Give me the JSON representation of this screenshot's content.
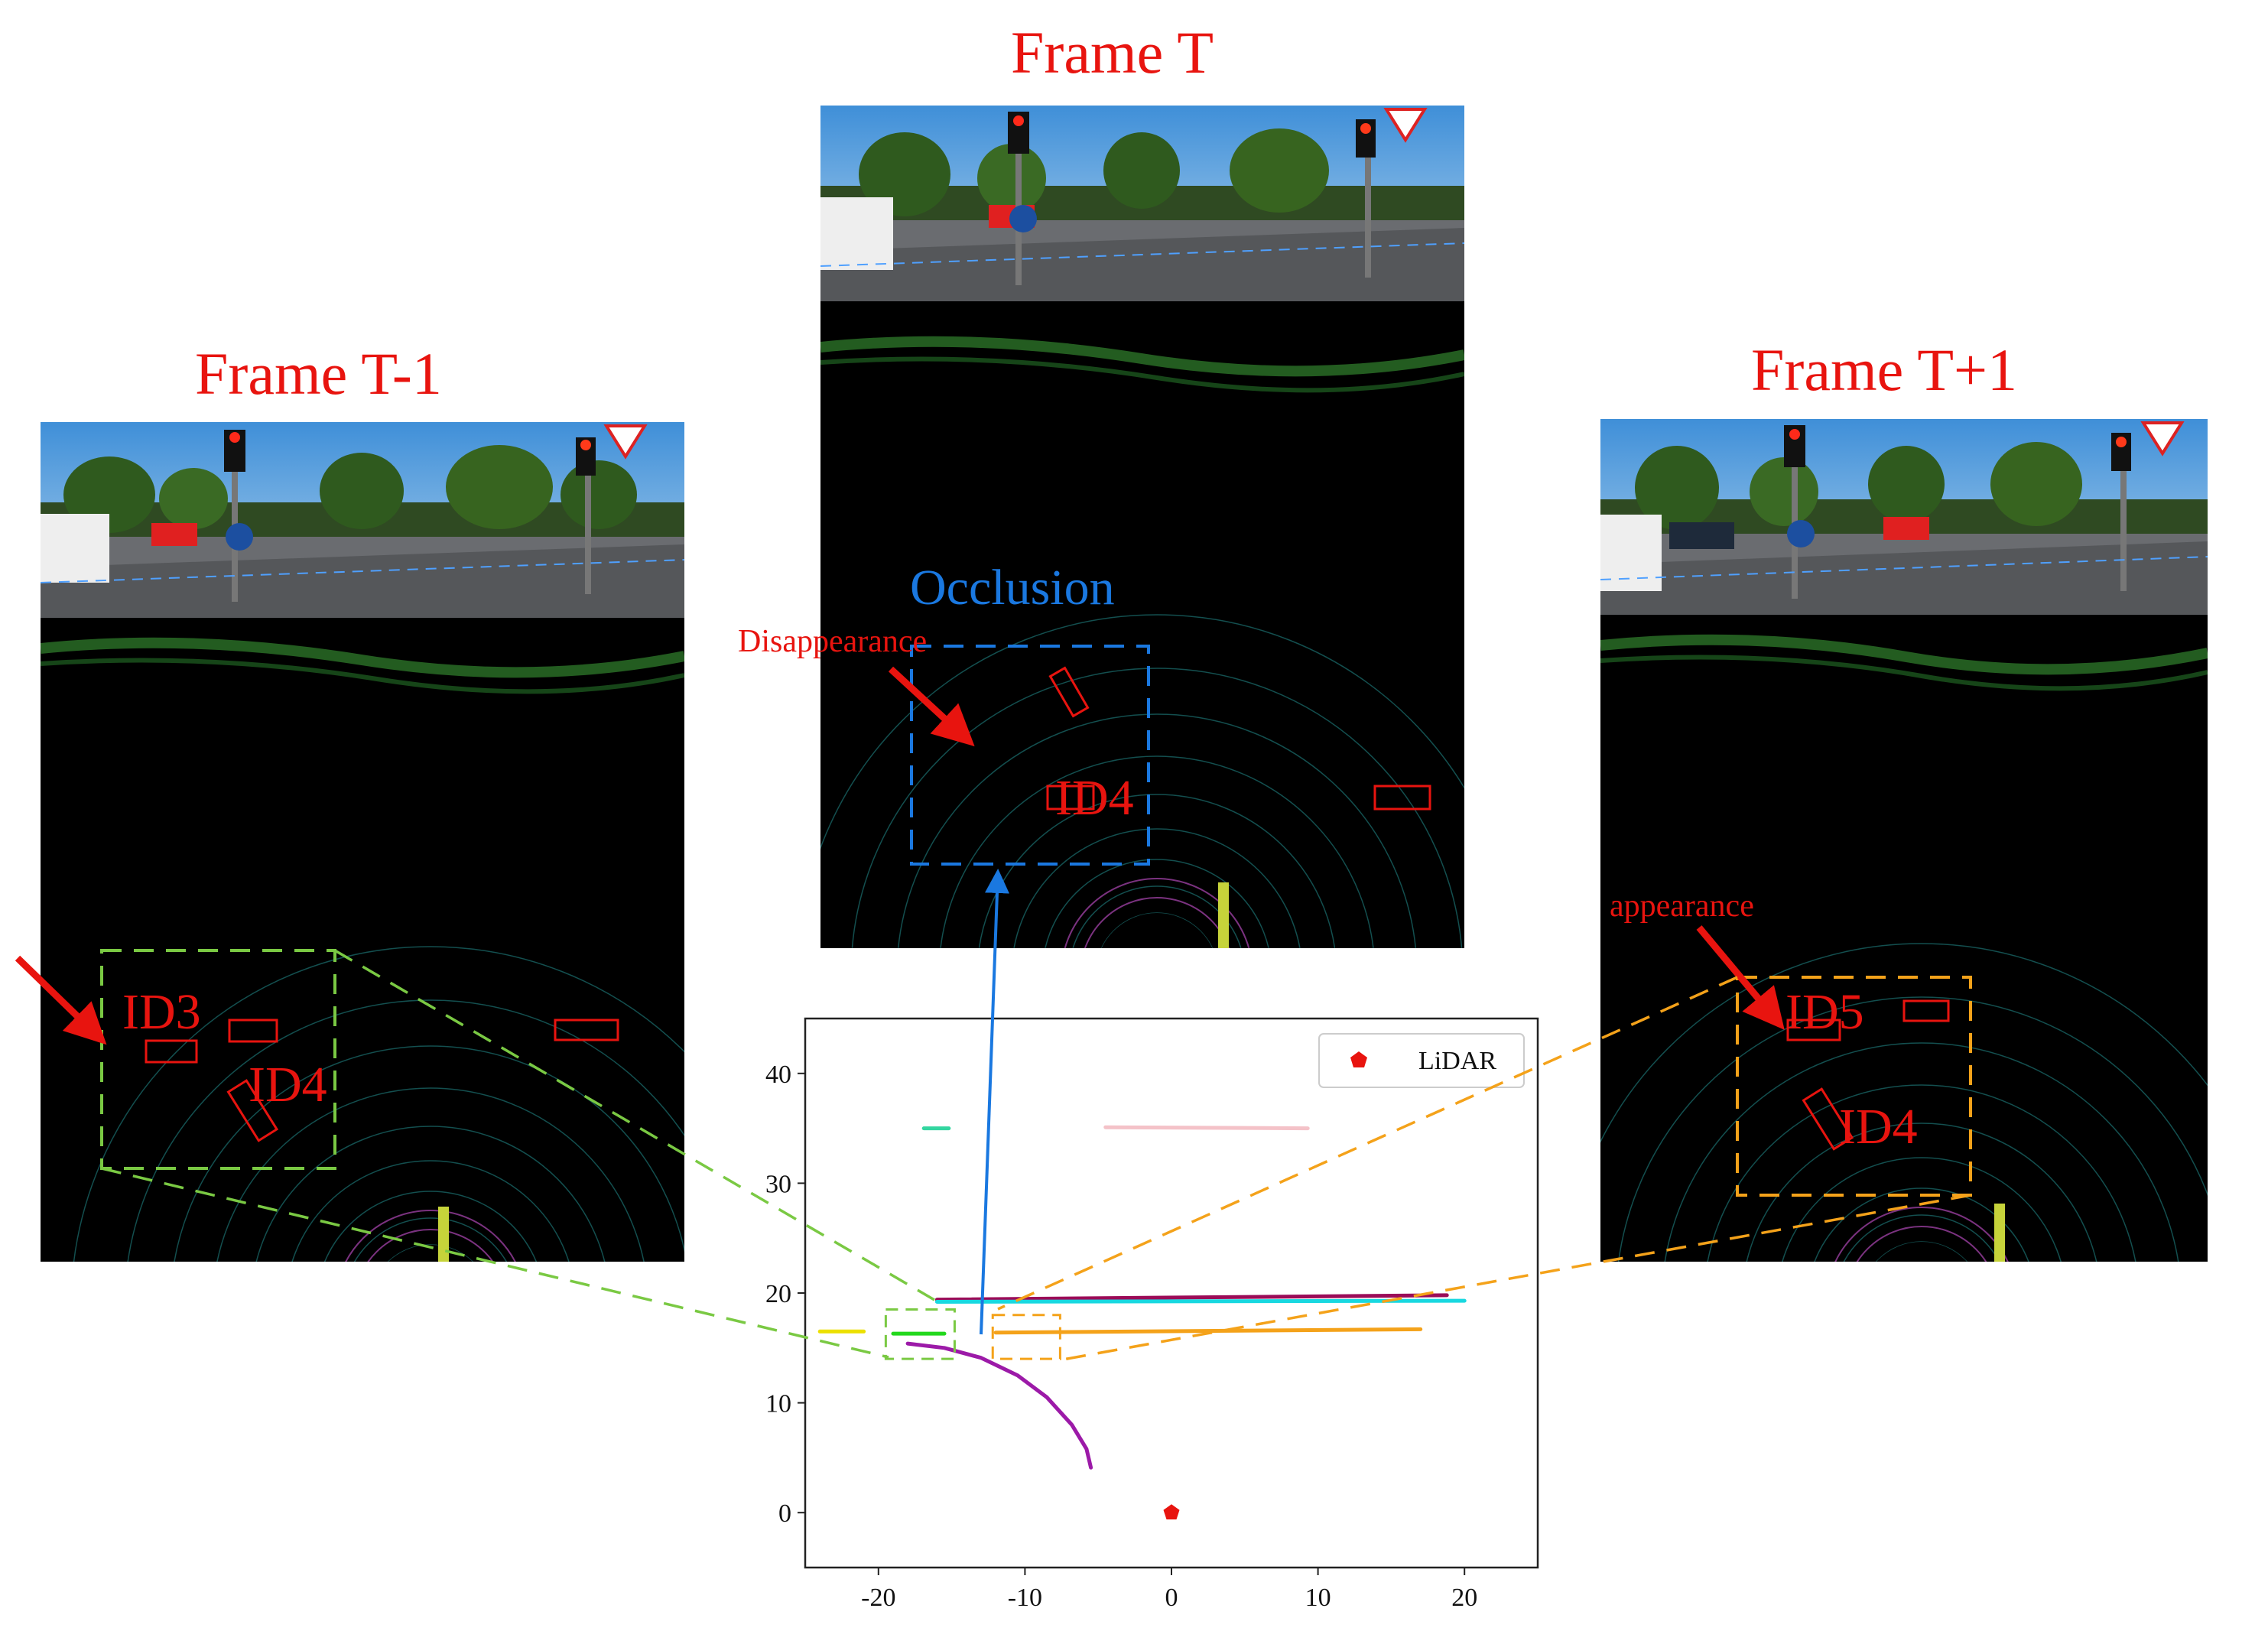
{
  "frames": {
    "prev": {
      "title": "Frame T-1",
      "id_labels": [
        "ID3",
        "ID4"
      ]
    },
    "curr": {
      "title": "Frame T",
      "occlusion": "Occlusion",
      "disappearance": "Disappearance",
      "id_label": "ID4"
    },
    "next": {
      "title": "Frame T+1",
      "appearance": "appearance",
      "id_labels": [
        "ID5",
        "ID4"
      ]
    }
  },
  "chart_data": {
    "type": "line",
    "xlim": [
      -25,
      25
    ],
    "ylim": [
      -5,
      45
    ],
    "xticks": [
      -20,
      -10,
      0,
      10,
      20
    ],
    "yticks": [
      0,
      10,
      20,
      30,
      40
    ],
    "xtick_labels": [
      "-20",
      "-10",
      "0",
      "10",
      "20"
    ],
    "ytick_labels": [
      "0",
      "10",
      "20",
      "30",
      "40"
    ],
    "legend": {
      "label": "LiDAR",
      "position": "top-right"
    },
    "lidar_point": {
      "x": 0,
      "y": 0,
      "color": "#e8140f"
    },
    "series": [
      {
        "color": "#f4c2c8",
        "points": [
          [
            -4.5,
            35.1
          ],
          [
            9.3,
            35.0
          ]
        ]
      },
      {
        "color": "#33d6a0",
        "points": [
          [
            -16.9,
            35.0
          ],
          [
            -15.2,
            35.0
          ]
        ]
      },
      {
        "color": "#9b0c58",
        "points": [
          [
            -16.0,
            19.4
          ],
          [
            18.8,
            19.8
          ]
        ]
      },
      {
        "color": "#18d8e0",
        "points": [
          [
            -16.0,
            19.2
          ],
          [
            20.0,
            19.3
          ]
        ]
      },
      {
        "color": "#f4a21a",
        "points": [
          [
            -12.0,
            16.4
          ],
          [
            17.0,
            16.7
          ]
        ]
      },
      {
        "color": "#ece000",
        "points": [
          [
            -24.0,
            16.5
          ],
          [
            -21.0,
            16.5
          ]
        ]
      },
      {
        "color": "#22d81c",
        "points": [
          [
            -19.0,
            16.3
          ],
          [
            -15.5,
            16.3
          ]
        ]
      },
      {
        "color": "#9c1aa8",
        "points": [
          [
            -18.0,
            15.4
          ],
          [
            -15.5,
            15.0
          ],
          [
            -13.0,
            14.1
          ],
          [
            -10.5,
            12.5
          ],
          [
            -8.5,
            10.5
          ],
          [
            -6.8,
            8.0
          ],
          [
            -5.8,
            5.8
          ],
          [
            -5.5,
            4.1
          ]
        ]
      }
    ],
    "zoom_boxes": [
      {
        "color": "#7ac943",
        "x": [
          -19.5,
          -14.8
        ],
        "y": [
          14.0,
          18.5
        ]
      },
      {
        "color": "#f4a21a",
        "x": [
          -12.2,
          -7.6
        ],
        "y": [
          14.0,
          18.0
        ]
      }
    ]
  }
}
